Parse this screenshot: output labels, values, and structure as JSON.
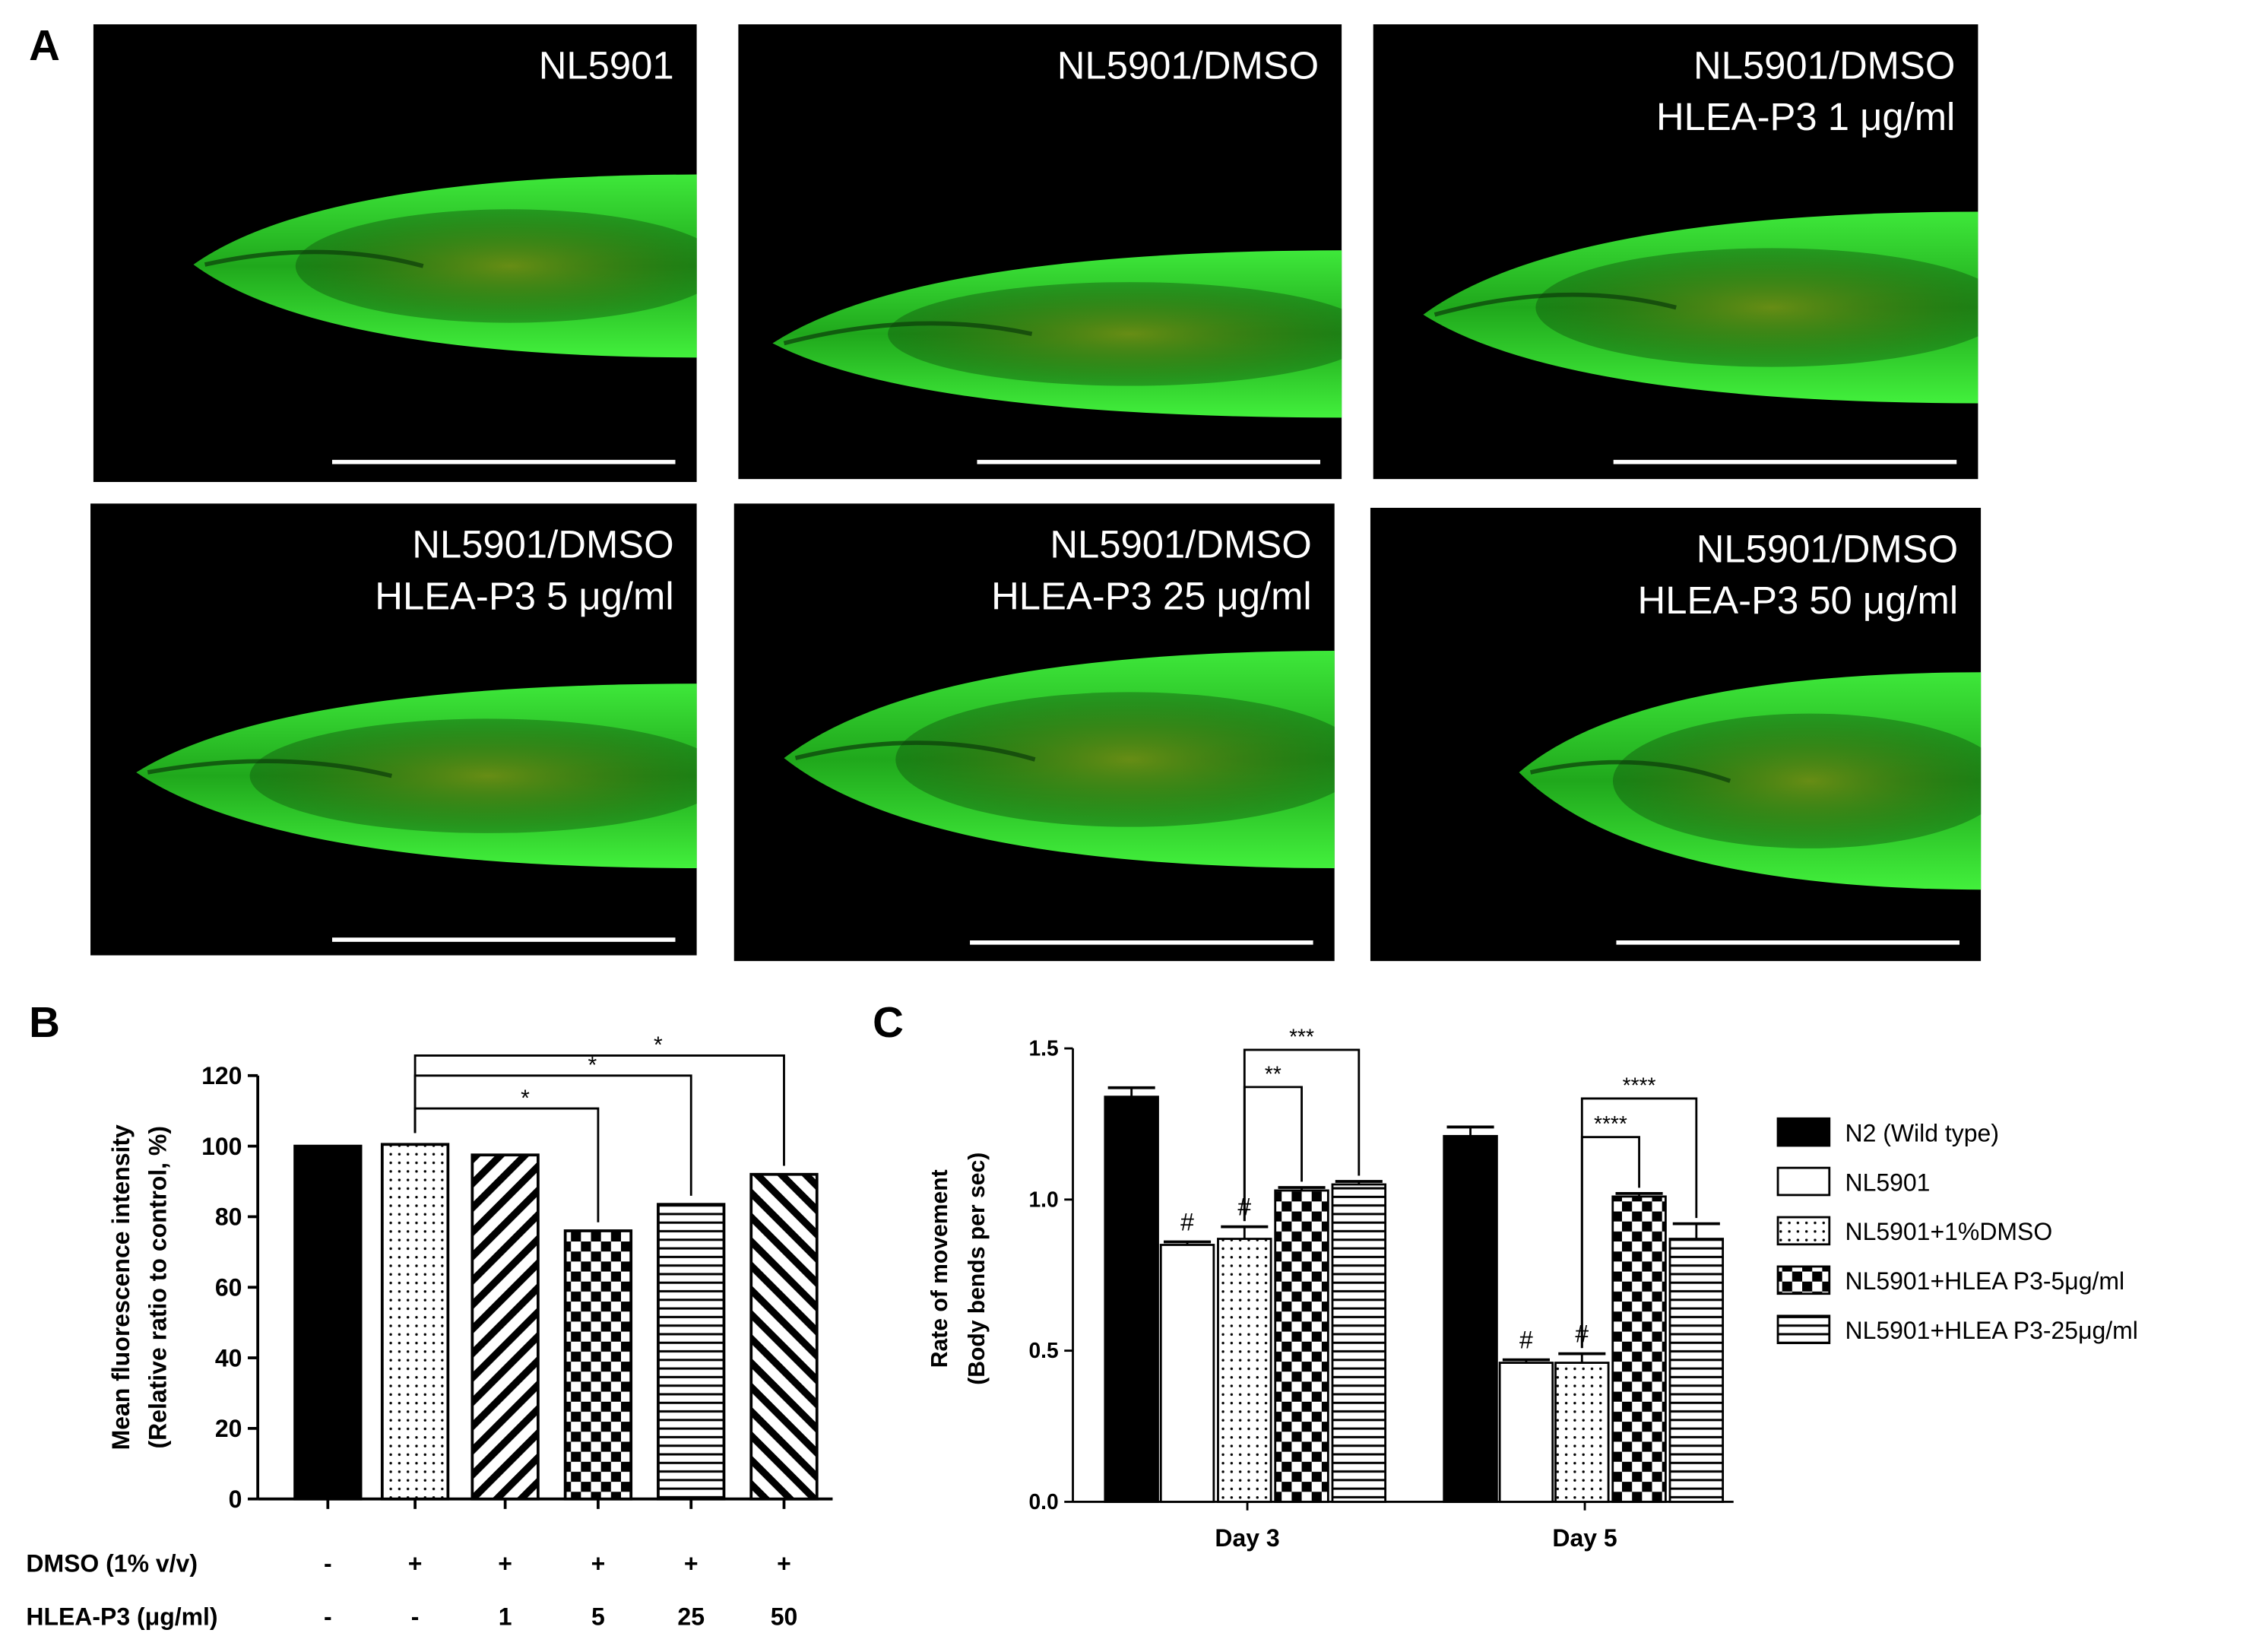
{
  "panel_labels": [
    "A",
    "B",
    "C"
  ],
  "images": [
    {
      "label": [
        "NL5901"
      ]
    },
    {
      "label": [
        "NL5901/DMSO"
      ]
    },
    {
      "label": [
        "NL5901/DMSO",
        "HLEA-P3 1 μg/ml"
      ]
    },
    {
      "label": [
        "NL5901/DMSO",
        "HLEA-P3 5 μg/ml"
      ]
    },
    {
      "label": [
        "NL5901/DMSO",
        "HLEA-P3 25 μg/ml"
      ]
    },
    {
      "label": [
        "NL5901/DMSO",
        "HLEA-P3 50 μg/ml"
      ]
    }
  ],
  "chart_data": [
    {
      "type": "bar",
      "y_label": [
        "Mean fluorescence intensity",
        "(Relative ratio to control, %)"
      ],
      "values": [
        100,
        100.5,
        97.5,
        76,
        83.5,
        92
      ],
      "patterns": [
        "solid",
        "dots",
        "backslash",
        "checker",
        "hlines",
        "slash"
      ],
      "ylim": [
        0,
        120
      ],
      "yticks": [
        0,
        20,
        40,
        60,
        80,
        100,
        120
      ],
      "condition_rows": [
        {
          "label": "DMSO (1% v/v)",
          "values": [
            "-",
            "+",
            "+",
            "+",
            "+",
            "+"
          ]
        },
        {
          "label": "HLEA-P3 (μg/ml)",
          "values": [
            "-",
            "-",
            "1",
            "5",
            "25",
            "50"
          ]
        }
      ],
      "significance": [
        "*",
        "*",
        "*"
      ]
    },
    {
      "type": "grouped_bar",
      "y_label": [
        "Rate of movement",
        "(Body bends per sec)"
      ],
      "categories": [
        "Day 3",
        "Day 5"
      ],
      "series": [
        {
          "name": "N2 (Wild type)",
          "pattern": "solid",
          "values": [
            1.34,
            1.21
          ],
          "errors": [
            0.03,
            0.03
          ]
        },
        {
          "name": "NL5901",
          "pattern": "white",
          "values": [
            0.85,
            0.46
          ],
          "errors": [
            0.01,
            0.01
          ]
        },
        {
          "name": "NL5901+1%DMSO",
          "pattern": "dots",
          "values": [
            0.87,
            0.46
          ],
          "errors": [
            0.04,
            0.03
          ]
        },
        {
          "name": "NL5901+HLEA P3-5μg/ml",
          "pattern": "checker",
          "values": [
            1.03,
            1.01
          ],
          "errors": [
            0.01,
            0.01
          ]
        },
        {
          "name": "NL5901+HLEA P3-25μg/ml",
          "pattern": "hlines",
          "values": [
            1.05,
            0.87
          ],
          "errors": [
            0.01,
            0.05
          ]
        }
      ],
      "ylim": [
        0,
        1.5
      ],
      "yticks": [
        {
          "value": 0,
          "label": "0.0"
        },
        0.5,
        {
          "value": 1,
          "label": "1.0"
        },
        1.5
      ],
      "legend": "right",
      "annotations": [
        "#",
        "#",
        "#",
        "#"
      ],
      "significance": [
        "**",
        "***",
        "****",
        "****"
      ]
    }
  ]
}
